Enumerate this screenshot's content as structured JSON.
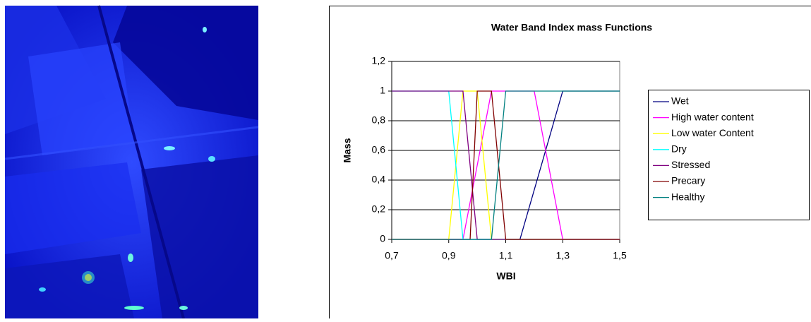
{
  "chart_data": {
    "type": "line",
    "title": "Water Band Index mass Functions",
    "x_label": "WBI",
    "y_label": "Mass",
    "xlim": [
      0.7,
      1.5
    ],
    "xticks": [
      {
        "value": 0.7,
        "label": "0,7"
      },
      {
        "value": 0.9,
        "label": "0,9"
      },
      {
        "value": 1.1,
        "label": "1,1"
      },
      {
        "value": 1.3,
        "label": "1,3"
      },
      {
        "value": 1.5,
        "label": "1,5"
      }
    ],
    "ylim": [
      0,
      1.2
    ],
    "yticks": [
      0,
      {
        "value": 0.2,
        "label": "0,2"
      },
      {
        "value": 0.4,
        "label": "0,4"
      },
      {
        "value": 0.6,
        "label": "0,6"
      },
      {
        "value": 0.8,
        "label": "0,8"
      },
      1,
      {
        "value": 1.2,
        "label": "1,2"
      }
    ],
    "grid": true,
    "legend": "right",
    "series": [
      {
        "name": "Wet",
        "color": "#000080",
        "x": [
          0.7,
          1.15,
          1.3,
          1.5
        ],
        "values": [
          0,
          0,
          1,
          1
        ]
      },
      {
        "name": "High water content",
        "color": "#ff00ff",
        "x": [
          0.7,
          0.95,
          1.05,
          1.2,
          1.3,
          1.5
        ],
        "values": [
          0,
          0,
          1,
          1,
          0,
          0
        ]
      },
      {
        "name": "Low water Content",
        "color": "#ffff00",
        "x": [
          0.7,
          0.9,
          0.95,
          1.0,
          1.05,
          1.5
        ],
        "values": [
          0,
          0,
          1,
          1,
          0,
          0
        ]
      },
      {
        "name": "Dry",
        "color": "#00ffff",
        "x": [
          0.7,
          0.9,
          0.95,
          1.5
        ],
        "values": [
          1,
          1,
          0,
          0
        ]
      },
      {
        "name": "Stressed",
        "color": "#800080",
        "x": [
          0.7,
          0.95,
          1.0,
          1.5
        ],
        "values": [
          1,
          1,
          0,
          0
        ]
      },
      {
        "name": "Precary",
        "color": "#800000",
        "x": [
          0.7,
          0.975,
          1.0,
          1.05,
          1.1,
          1.5
        ],
        "values": [
          0,
          0,
          1,
          1,
          0,
          0
        ]
      },
      {
        "name": "Healthy",
        "color": "#008080",
        "x": [
          0.7,
          1.05,
          1.1,
          1.5
        ],
        "values": [
          0,
          0,
          1,
          1
        ]
      }
    ]
  }
}
